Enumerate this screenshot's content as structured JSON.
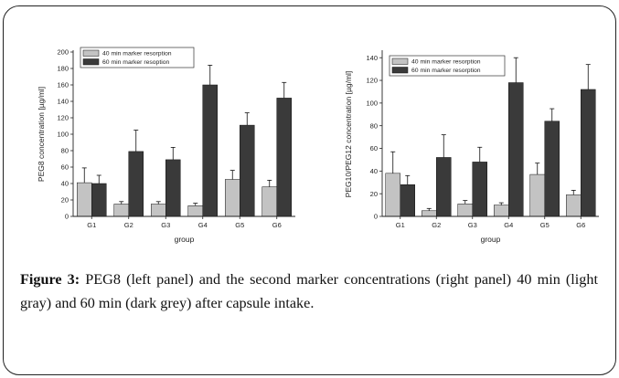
{
  "caption": {
    "label": "Figure 3:",
    "text": " PEG8 (left panel) and the second marker concentrations (right panel) 40 min (light gray) and 60 min (dark grey) after capsule intake."
  },
  "colors": {
    "series_40": "#c3c3c3",
    "series_60": "#3a3a3a",
    "axis": "#222222"
  },
  "chart_data": [
    {
      "type": "bar",
      "title": "",
      "xlabel": "group",
      "ylabel": "PEG8 concentration [µg/ml]",
      "categories": [
        "G1",
        "G2",
        "G3",
        "G4",
        "G5",
        "G6"
      ],
      "ylim": [
        0,
        200
      ],
      "yticks": [
        0,
        20,
        40,
        60,
        80,
        100,
        120,
        140,
        160,
        180,
        200
      ],
      "legend_position": "top-left",
      "series": [
        {
          "name": "40 min marker resorption",
          "color": "#c3c3c3",
          "values": [
            41,
            15,
            15,
            13,
            45,
            36
          ],
          "errors": [
            18,
            3,
            3,
            3,
            11,
            8
          ]
        },
        {
          "name": "60 min marker resoption",
          "color": "#3a3a3a",
          "values": [
            40,
            79,
            69,
            160,
            111,
            144
          ],
          "errors": [
            10,
            26,
            15,
            24,
            15,
            19
          ]
        }
      ]
    },
    {
      "type": "bar",
      "title": "",
      "xlabel": "group",
      "ylabel": "PEG10/PEG12 concentration [µg/ml]",
      "categories": [
        "G1",
        "G2",
        "G3",
        "G4",
        "G5",
        "G6"
      ],
      "ylim": [
        0,
        145
      ],
      "yticks": [
        0,
        20,
        40,
        60,
        80,
        100,
        120,
        140
      ],
      "legend_position": "top-left",
      "series": [
        {
          "name": "40 min marker resorption",
          "color": "#c3c3c3",
          "values": [
            38,
            5,
            11,
            10,
            37,
            19
          ],
          "errors": [
            19,
            2,
            3,
            2,
            10,
            4
          ]
        },
        {
          "name": "60 min marker resorption",
          "color": "#3a3a3a",
          "values": [
            28,
            52,
            48,
            118,
            84,
            112
          ],
          "errors": [
            8,
            20,
            13,
            22,
            11,
            22
          ]
        }
      ]
    }
  ]
}
